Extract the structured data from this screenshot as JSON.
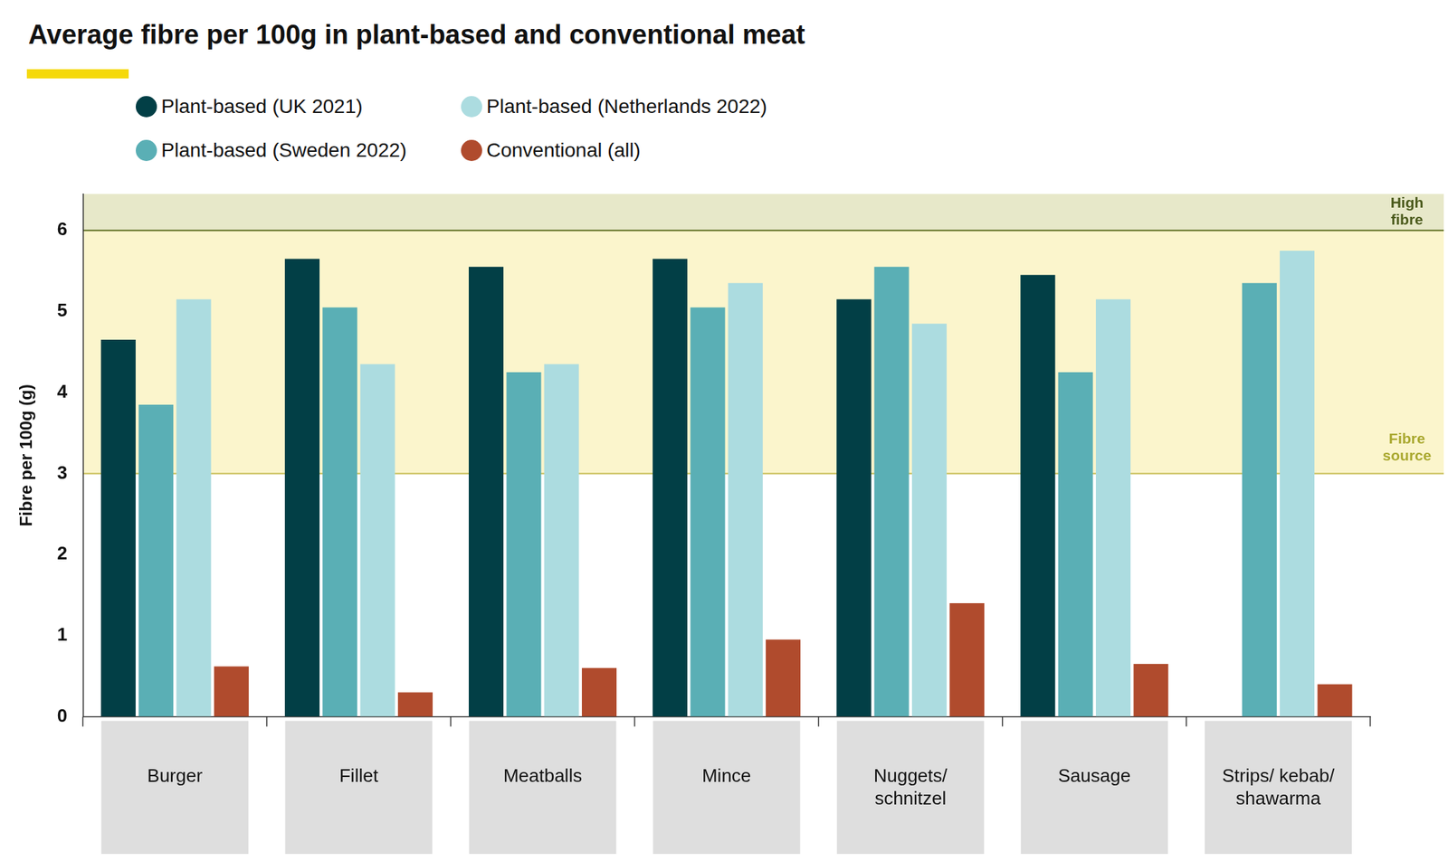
{
  "chart_data": {
    "type": "bar",
    "title": "Average fibre per 100g in plant-based and conventional meat",
    "y_label": "Fibre per 100g (g)",
    "categories": [
      "Burger",
      "Fillet",
      "Meatballs",
      "Mince",
      "Nuggets/ schnitzel",
      "Sausage",
      "Strips/ kebab/ shawarma"
    ],
    "series": [
      {
        "name": "Plant-based (UK 2021)",
        "color": "#023f46",
        "values": [
          4.65,
          5.65,
          5.55,
          5.65,
          5.15,
          5.45,
          null
        ]
      },
      {
        "name": "Plant-based (Sweden 2022)",
        "color": "#5aafb5",
        "values": [
          3.85,
          5.05,
          4.25,
          5.05,
          5.55,
          4.25,
          5.35
        ]
      },
      {
        "name": "Plant-based (Netherlands 2022)",
        "color": "#acdce0",
        "values": [
          5.15,
          4.35,
          4.35,
          5.35,
          4.85,
          5.15,
          5.75
        ]
      },
      {
        "name": "Conventional (all)",
        "color": "#b04b2d",
        "values": [
          0.62,
          0.3,
          0.6,
          0.95,
          1.4,
          0.65,
          0.4
        ]
      }
    ],
    "ylim": [
      0,
      6.45
    ],
    "yticks": [
      0,
      1,
      2,
      3,
      4,
      5,
      6
    ],
    "grid": false,
    "legend": "top",
    "bands": [
      {
        "label": "Fibre source",
        "from": 3,
        "to": 6,
        "color": "#fbf5cc"
      },
      {
        "label": "High fibre",
        "from": 6,
        "to": 6.45,
        "color": "#e7e8c9"
      }
    ]
  }
}
